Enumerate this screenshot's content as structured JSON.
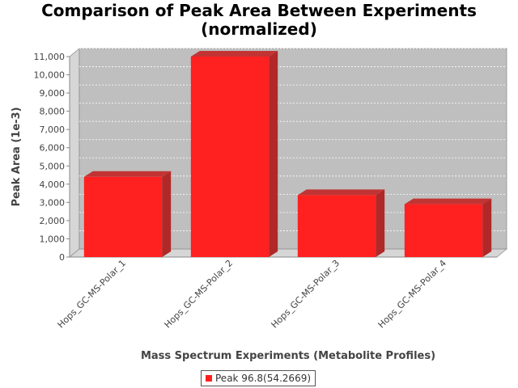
{
  "chart_data": {
    "type": "bar",
    "title": [
      "Comparison of Peak Area Between Experiments",
      "(normalized)"
    ],
    "xlabel": "Mass Spectrum Experiments (Metabolite Profiles)",
    "ylabel": "Peak Area (1e-3)",
    "categories": [
      "Hops_GC-MS-Polar_1",
      "Hops_GC-MS-Polar_2",
      "Hops_GC-MS-Polar_3",
      "Hops_GC-MS-Polar_4"
    ],
    "series": [
      {
        "name": "Peak 96.8(54.2669)",
        "color": "#ff2020",
        "values": [
          4400,
          11000,
          3400,
          2900
        ]
      }
    ],
    "ylim": [
      0,
      11000
    ],
    "yticks": [
      0,
      1000,
      2000,
      3000,
      4000,
      5000,
      6000,
      7000,
      8000,
      9000,
      10000,
      11000
    ],
    "ytick_labels": [
      "0",
      "1,000",
      "2,000",
      "3,000",
      "4,000",
      "5,000",
      "6,000",
      "7,000",
      "8,000",
      "9,000",
      "10,000",
      "11,000"
    ],
    "grid": true,
    "legend_position": "bottom",
    "plot_background": "#bfbfbf"
  }
}
